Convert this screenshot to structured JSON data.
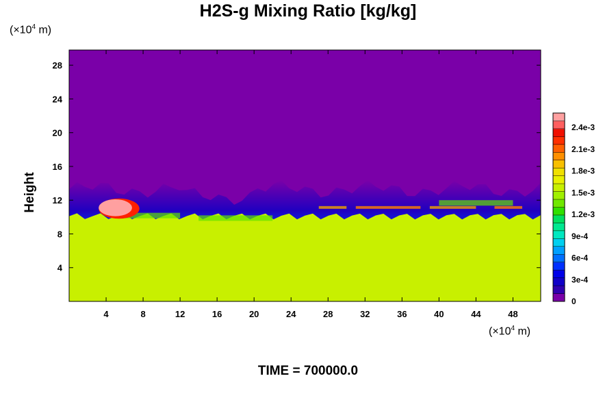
{
  "chart_data": {
    "type": "heatmap",
    "title": "H2S-g Mixing Ratio [kg/kg]",
    "ylabel": "Height",
    "xlabel": "",
    "y_unit": "(×10⁴ m)",
    "x_unit": "(×10⁴ m)",
    "x_ticks": [
      4,
      8,
      12,
      16,
      20,
      24,
      28,
      32,
      36,
      40,
      44,
      48
    ],
    "y_ticks": [
      4,
      8,
      12,
      16,
      20,
      24,
      28
    ],
    "xlim": [
      0,
      51
    ],
    "ylim": [
      0,
      29.8
    ],
    "colorbar": {
      "labels": [
        "0",
        "3e-4",
        "6e-4",
        "9e-4",
        "1.2e-3",
        "1.5e-3",
        "1.8e-3",
        "2.1e-3",
        "2.4e-3"
      ],
      "values": [
        0,
        0.0003,
        0.0006,
        0.0009,
        0.0012,
        0.0015,
        0.0018,
        0.0021,
        0.0024
      ],
      "range": [
        0,
        0.0026
      ]
    },
    "colors": [
      "#7a00a8",
      "#2000c0",
      "#0040ff",
      "#00c8ff",
      "#00e08c",
      "#60e000",
      "#c8f000",
      "#f0e000",
      "#ff8000",
      "#ff2000",
      "#ffa0a0"
    ],
    "description_regions": {
      "boundary_height_approx": 12.5,
      "lower_value": 0.0017,
      "upper_value": 0
    },
    "time_label": "TIME = 700000.0"
  }
}
